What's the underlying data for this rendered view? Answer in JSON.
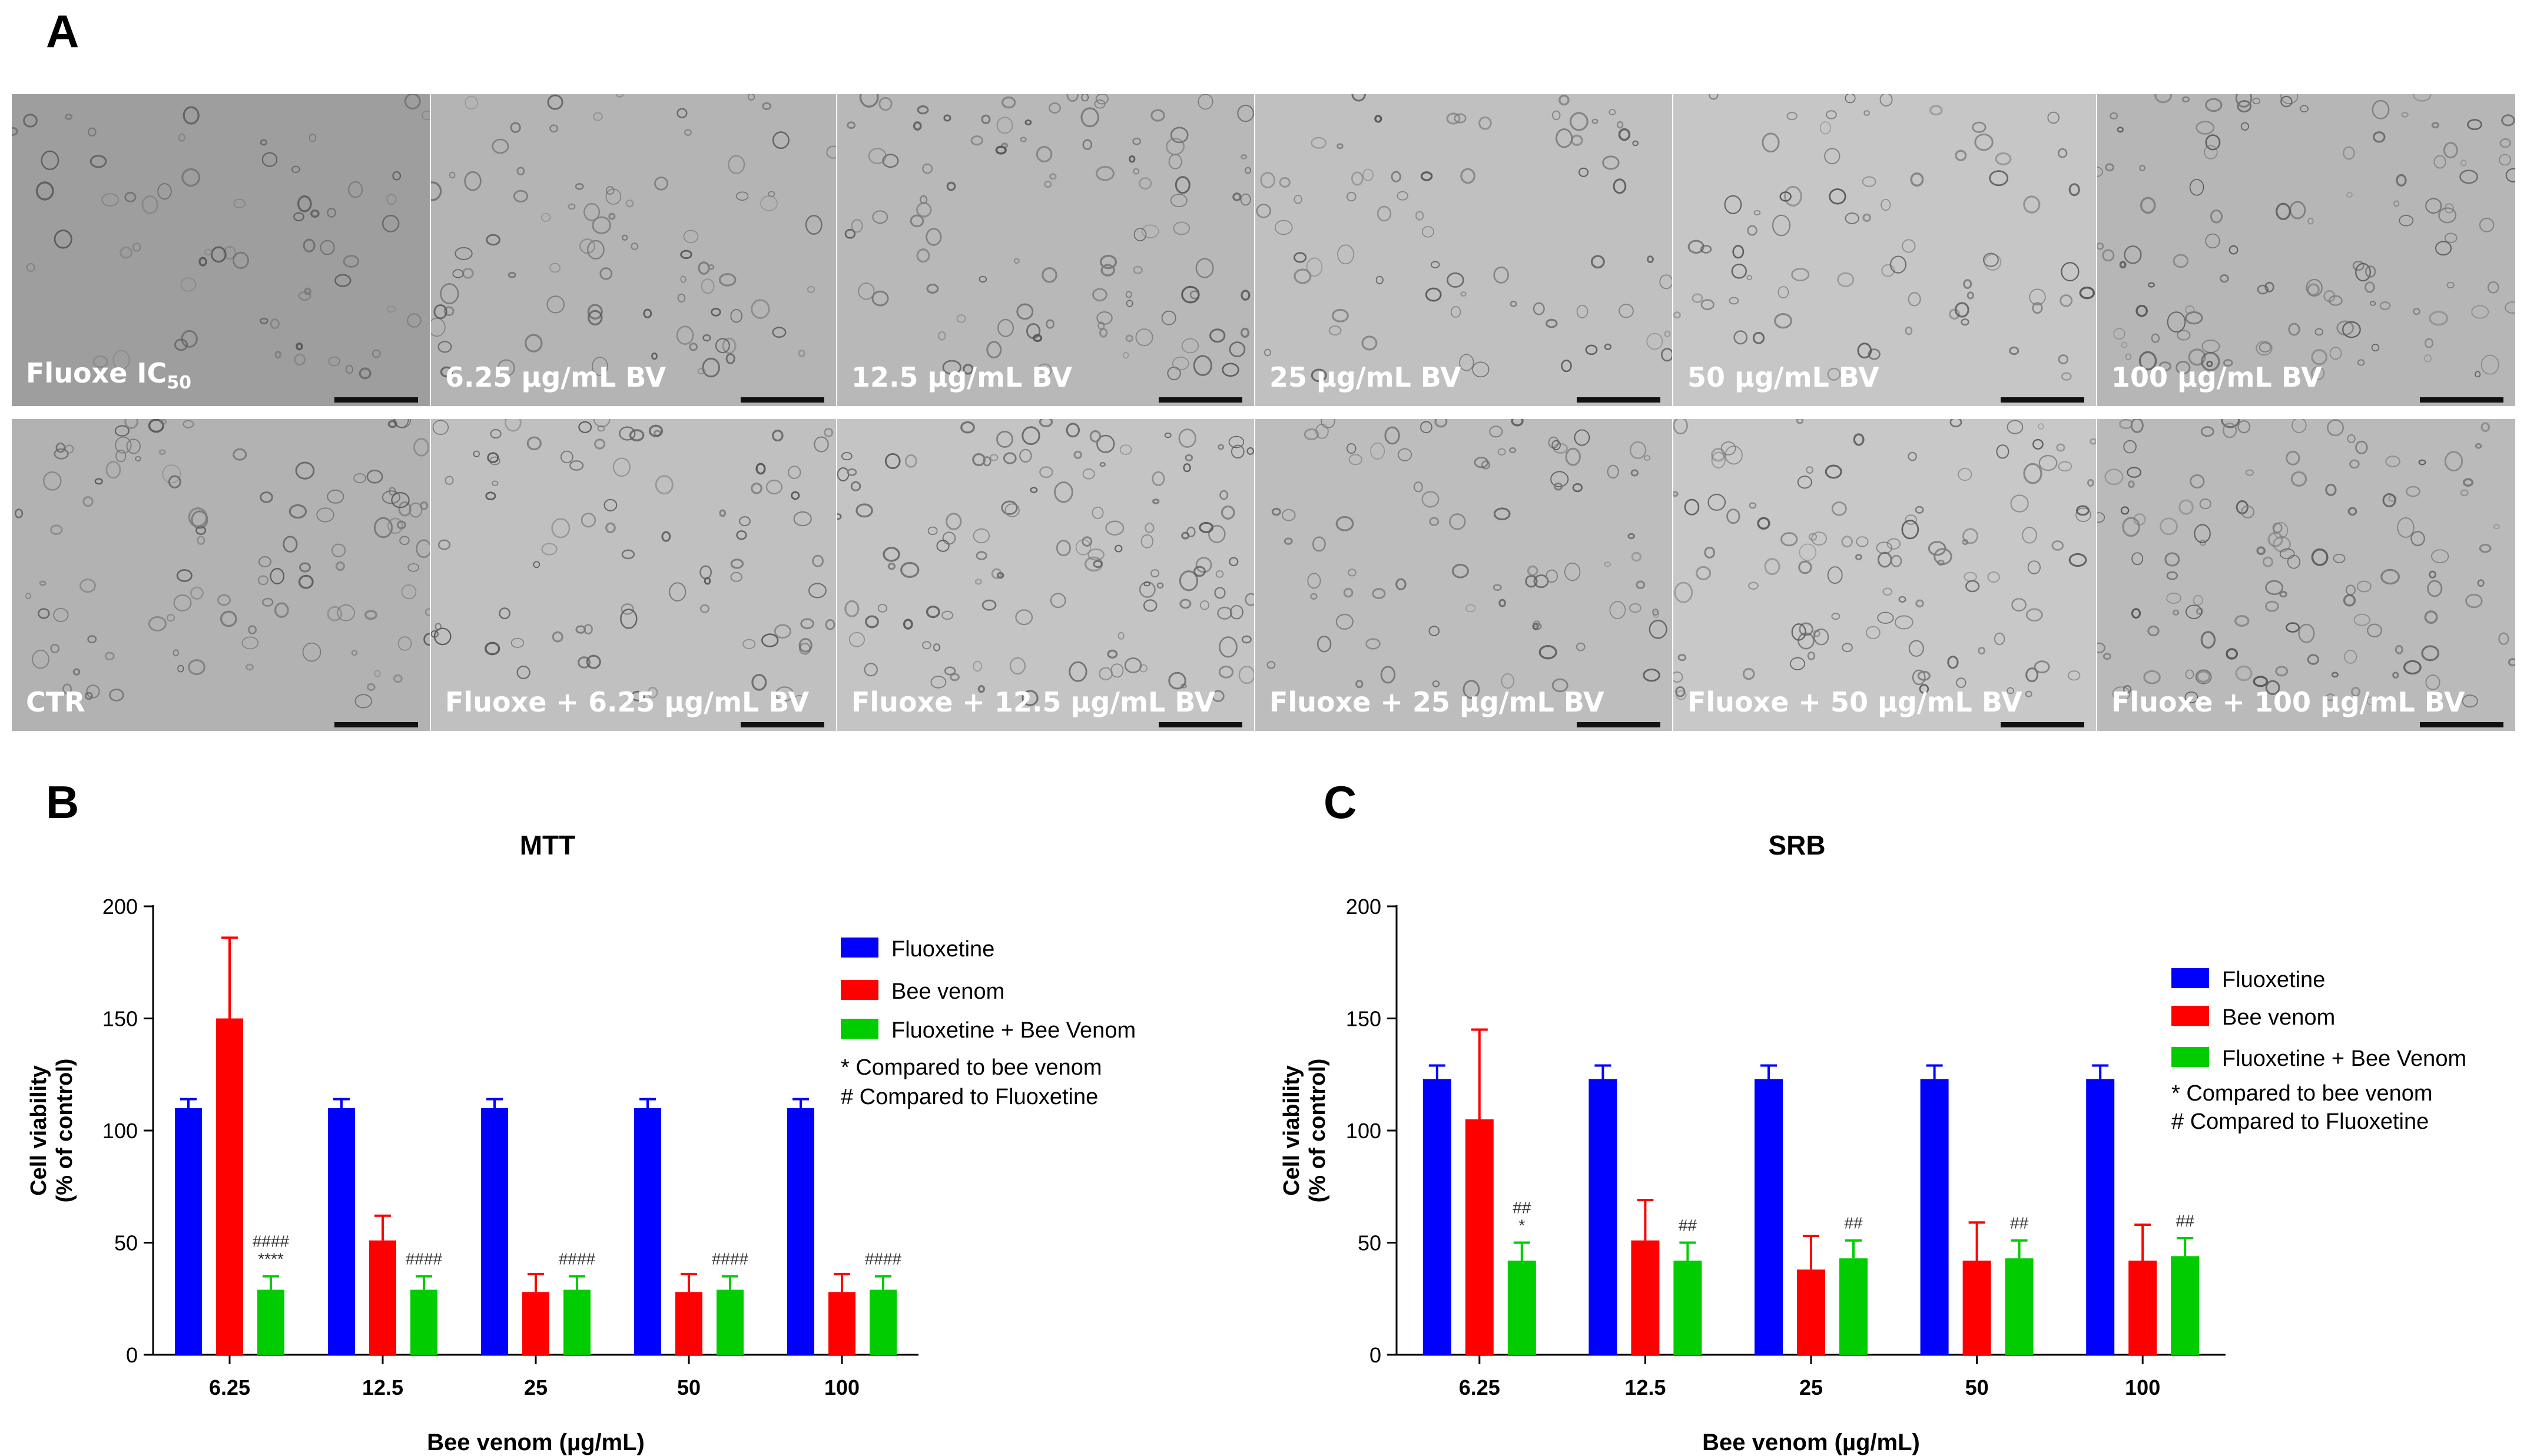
{
  "panel_labels": {
    "a": "A",
    "b": "B",
    "c": "C"
  },
  "micrographs": {
    "row1": [
      {
        "label": "Fluoxe IC",
        "sub": "50"
      },
      {
        "label": "6.25 µg/mL BV"
      },
      {
        "label": "12.5 µg/mL BV"
      },
      {
        "label": "25 µg/mL BV"
      },
      {
        "label": "50 µg/mL BV"
      },
      {
        "label": "100 µg/mL BV"
      }
    ],
    "row2": [
      {
        "label": "CTR"
      },
      {
        "label": "Fluoxe + 6.25 µg/mL BV"
      },
      {
        "label": "Fluoxe + 12.5 µg/mL BV"
      },
      {
        "label": "Fluoxe + 25 µg/mL BV"
      },
      {
        "label": "Fluoxe + 50 µg/mL BV"
      },
      {
        "label": "Fluoxe + 100 µg/mL BV"
      }
    ]
  },
  "colors": {
    "fluoxetine": "#0000ff",
    "bee_venom": "#ff0000",
    "combo": "#00cc00"
  },
  "chart_data": [
    {
      "type": "bar",
      "title": "MTT",
      "xlabel": "Bee venom (µg/mL)",
      "ylabel": [
        "Cell viability",
        "(% of control)"
      ],
      "ylim": [
        0,
        200
      ],
      "yticks": [
        "0",
        "50",
        "100",
        "150",
        "200"
      ],
      "categories": [
        "6.25",
        "12.5",
        "25",
        "50",
        "100"
      ],
      "series": [
        {
          "name": "Fluoxetine",
          "values": [
            110,
            110,
            110,
            110,
            110
          ],
          "errors": [
            4,
            4,
            4,
            4,
            4
          ]
        },
        {
          "name": "Bee venom",
          "values": [
            150,
            51,
            28,
            28,
            28
          ],
          "errors": [
            36,
            11,
            8,
            8,
            8
          ]
        },
        {
          "name": "Fluoxetine + Bee Venom",
          "values": [
            29,
            29,
            29,
            29,
            29
          ],
          "errors": [
            6,
            6,
            6,
            6,
            6
          ]
        }
      ],
      "significance": [
        [
          "####",
          "****"
        ],
        [
          "####"
        ],
        [
          "####"
        ],
        [
          "####"
        ],
        [
          "####"
        ]
      ],
      "legend_notes": [
        "* Compared to bee venom",
        "# Compared to Fluoxetine"
      ],
      "legend_position": "right"
    },
    {
      "type": "bar",
      "title": "SRB",
      "xlabel": "Bee venom (µg/mL)",
      "ylabel": [
        "Cell viability",
        "(% of control)"
      ],
      "ylim": [
        0,
        200
      ],
      "yticks": [
        "0",
        "50",
        "100",
        "150",
        "200"
      ],
      "categories": [
        "6.25",
        "12.5",
        "25",
        "50",
        "100"
      ],
      "series": [
        {
          "name": "Fluoxetine",
          "values": [
            123,
            123,
            123,
            123,
            123
          ],
          "errors": [
            6,
            6,
            6,
            6,
            6
          ]
        },
        {
          "name": "Bee venom",
          "values": [
            105,
            51,
            38,
            42,
            42
          ],
          "errors": [
            40,
            18,
            15,
            17,
            16
          ]
        },
        {
          "name": "Fluoxetine + Bee Venom",
          "values": [
            42,
            42,
            43,
            43,
            44
          ],
          "errors": [
            8,
            8,
            8,
            8,
            8
          ]
        }
      ],
      "significance": [
        [
          "##",
          "*"
        ],
        [
          "##"
        ],
        [
          "##"
        ],
        [
          "##"
        ],
        [
          "##"
        ]
      ],
      "legend_notes": [
        "* Compared to bee venom",
        "# Compared to Fluoxetine"
      ],
      "legend_position": "right"
    }
  ]
}
